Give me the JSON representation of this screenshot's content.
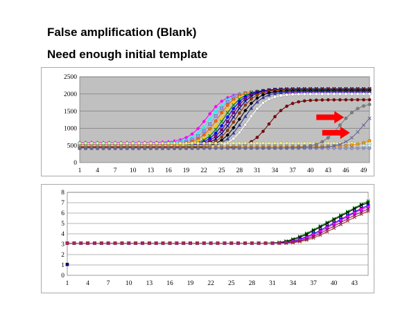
{
  "slide": {
    "title_line1": "False amplification (Blank)",
    "title_line2": "Need enough initial template"
  },
  "chart_data": [
    {
      "type": "line",
      "title": "",
      "xlabel": "",
      "ylabel": "",
      "xlim": [
        1,
        50
      ],
      "ylim": [
        0,
        2500
      ],
      "x_ticks": [
        1,
        4,
        7,
        10,
        13,
        16,
        19,
        22,
        25,
        28,
        31,
        34,
        37,
        40,
        43,
        46,
        49
      ],
      "y_ticks": [
        0,
        500,
        1000,
        1500,
        2000,
        2500
      ],
      "grid": true,
      "plot_background": "#c0c0c0",
      "annotations": [
        {
          "type": "arrow",
          "color": "#ff0000",
          "points_to": "late amplification curve near cycle 44",
          "at": {
            "x": 41,
            "y": 1320
          }
        },
        {
          "type": "arrow",
          "color": "#ff0000",
          "points_to": "late amplification curve near cycle 46",
          "at": {
            "x": 42,
            "y": 870
          }
        }
      ],
      "series": [
        {
          "color": "#ff00ff",
          "marker": "diamond",
          "ct": 22.5,
          "plateau": 2040,
          "baseline": 580
        },
        {
          "color": "#00ffff",
          "marker": "x",
          "ct": 23.2,
          "plateau": 2060,
          "baseline": 560
        },
        {
          "color": "#9999ff",
          "marker": "square",
          "ct": 23.8,
          "plateau": 2080,
          "baseline": 540
        },
        {
          "color": "#ff6600",
          "marker": "circle",
          "ct": 24.4,
          "plateau": 2100,
          "baseline": 520
        },
        {
          "color": "#ffcc00",
          "marker": "triangle",
          "ct": 24.9,
          "plateau": 2110,
          "baseline": 500
        },
        {
          "color": "#008000",
          "marker": "x",
          "ct": 25.4,
          "plateau": 2120,
          "baseline": 480
        },
        {
          "color": "#0000ff",
          "marker": "diamond",
          "ct": 25.9,
          "plateau": 2130,
          "baseline": 470
        },
        {
          "color": "#800080",
          "marker": "square",
          "ct": 26.4,
          "plateau": 2140,
          "baseline": 460
        },
        {
          "color": "#000080",
          "marker": "x",
          "ct": 26.9,
          "plateau": 2150,
          "baseline": 450
        },
        {
          "color": "#993300",
          "marker": "circle",
          "ct": 27.4,
          "plateau": 2130,
          "baseline": 440
        },
        {
          "color": "#000000",
          "marker": "diamond",
          "ct": 28.0,
          "plateau": 2100,
          "baseline": 430
        },
        {
          "color": "#333399",
          "marker": "triangle",
          "ct": 28.6,
          "plateau": 2070,
          "baseline": 420
        },
        {
          "color": "#ffffff",
          "marker": "circle",
          "ct": 29.4,
          "plateau": 2000,
          "baseline": 410
        },
        {
          "color": "#800000",
          "marker": "circle",
          "ct": 33.0,
          "plateau": 1830,
          "baseline": 420
        },
        {
          "color": "#ffff99",
          "marker": "circle",
          "ct": null,
          "plateau": 560,
          "baseline": 560
        },
        {
          "color": "#ccffff",
          "marker": "circle",
          "ct": null,
          "plateau": 500,
          "baseline": 500
        },
        {
          "color": "#ff9900",
          "marker": "circle",
          "ct": 52.0,
          "plateau": 1200,
          "baseline": 480
        },
        {
          "color": "#9999cc",
          "marker": "circle",
          "ct": null,
          "plateau": 420,
          "baseline": 420
        },
        {
          "color": "#808080",
          "marker": "circle",
          "ct": 45.0,
          "plateau": 1750,
          "baseline": 430
        },
        {
          "color": "#666699",
          "marker": "x",
          "ct": 49.0,
          "plateau": 1750,
          "baseline": 430
        }
      ]
    },
    {
      "type": "line",
      "title": "",
      "xlabel": "",
      "ylabel": "",
      "xlim": [
        1,
        45
      ],
      "ylim": [
        0,
        8
      ],
      "x_ticks": [
        1,
        4,
        7,
        10,
        13,
        16,
        19,
        22,
        25,
        28,
        31,
        34,
        37,
        40,
        43
      ],
      "y_ticks": [
        0,
        1,
        2,
        3,
        4,
        5,
        6,
        7,
        8
      ],
      "grid": true,
      "plot_background": "#ffffff",
      "series": [
        {
          "color": "#008000",
          "marker": "x",
          "values": [
            3.1,
            3.1,
            3.1,
            3.1,
            3.1,
            3.1,
            3.1,
            3.1,
            3.1,
            3.1,
            3.1,
            3.1,
            3.1,
            3.1,
            3.1,
            3.1,
            3.1,
            3.1,
            3.1,
            3.1,
            3.1,
            3.1,
            3.1,
            3.1,
            3.1,
            3.1,
            3.1,
            3.1,
            3.1,
            3.1,
            3.12,
            3.18,
            3.3,
            3.5,
            3.75,
            4.05,
            4.4,
            4.75,
            5.1,
            5.45,
            5.8,
            6.15,
            6.5,
            6.85,
            7.15
          ]
        },
        {
          "color": "#000000",
          "marker": "x",
          "values": [
            3.1,
            3.1,
            3.1,
            3.1,
            3.1,
            3.1,
            3.1,
            3.1,
            3.1,
            3.1,
            3.1,
            3.1,
            3.1,
            3.1,
            3.1,
            3.1,
            3.1,
            3.1,
            3.1,
            3.1,
            3.1,
            3.1,
            3.1,
            3.1,
            3.1,
            3.1,
            3.1,
            3.1,
            3.1,
            3.1,
            3.11,
            3.15,
            3.25,
            3.42,
            3.65,
            3.95,
            4.3,
            4.65,
            5.0,
            5.35,
            5.7,
            6.05,
            6.4,
            6.75,
            7.0
          ]
        },
        {
          "color": "#0000ff",
          "marker": "square",
          "values": [
            3.1,
            3.1,
            3.1,
            3.1,
            3.1,
            3.1,
            3.1,
            3.1,
            3.1,
            3.1,
            3.1,
            3.1,
            3.1,
            3.1,
            3.1,
            3.1,
            3.1,
            3.1,
            3.1,
            3.1,
            3.1,
            3.1,
            3.1,
            3.1,
            3.1,
            3.1,
            3.1,
            3.1,
            3.1,
            3.1,
            3.1,
            3.12,
            3.18,
            3.3,
            3.48,
            3.72,
            4.0,
            4.35,
            4.7,
            5.05,
            5.4,
            5.75,
            6.1,
            6.45,
            6.75
          ]
        },
        {
          "color": "#ff00ff",
          "marker": "square",
          "values": [
            3.1,
            3.1,
            3.1,
            3.1,
            3.1,
            3.1,
            3.1,
            3.1,
            3.1,
            3.1,
            3.1,
            3.1,
            3.1,
            3.1,
            3.1,
            3.1,
            3.1,
            3.1,
            3.1,
            3.1,
            3.1,
            3.1,
            3.1,
            3.1,
            3.1,
            3.1,
            3.1,
            3.1,
            3.1,
            3.1,
            3.1,
            3.11,
            3.15,
            3.25,
            3.4,
            3.62,
            3.9,
            4.22,
            4.58,
            4.95,
            5.3,
            5.65,
            6.0,
            6.35,
            6.6
          ]
        },
        {
          "color": "#800080",
          "marker": "x",
          "values": [
            3.1,
            3.1,
            3.1,
            3.1,
            3.1,
            3.1,
            3.1,
            3.1,
            3.1,
            3.1,
            3.1,
            3.1,
            3.1,
            3.1,
            3.1,
            3.1,
            3.1,
            3.1,
            3.1,
            3.1,
            3.1,
            3.1,
            3.1,
            3.1,
            3.1,
            3.1,
            3.1,
            3.1,
            3.1,
            3.1,
            3.1,
            3.1,
            3.12,
            3.2,
            3.32,
            3.5,
            3.75,
            4.05,
            4.4,
            4.75,
            5.1,
            5.45,
            5.8,
            6.1,
            6.4
          ]
        },
        {
          "color": "#993333",
          "marker": "x",
          "values": [
            3.1,
            3.1,
            3.1,
            3.1,
            3.1,
            3.1,
            3.1,
            3.1,
            3.1,
            3.1,
            3.1,
            3.1,
            3.1,
            3.1,
            3.1,
            3.1,
            3.1,
            3.1,
            3.1,
            3.1,
            3.1,
            3.1,
            3.1,
            3.1,
            3.1,
            3.1,
            3.1,
            3.1,
            3.1,
            3.1,
            3.1,
            3.1,
            3.1,
            3.15,
            3.25,
            3.4,
            3.6,
            3.88,
            4.2,
            4.55,
            4.9,
            5.25,
            5.6,
            5.9,
            6.2
          ]
        },
        {
          "color": "#000080",
          "marker": "square",
          "values": [
            1.05
          ]
        }
      ]
    }
  ]
}
